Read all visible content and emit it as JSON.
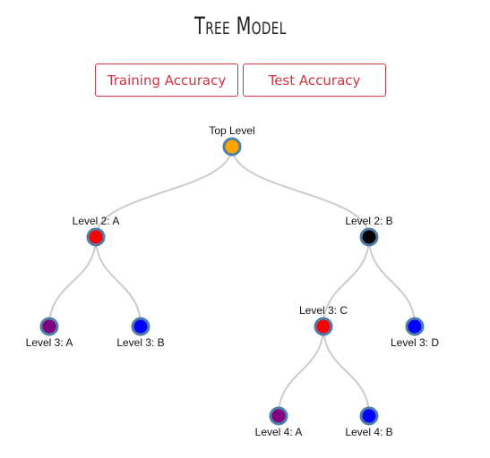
{
  "header": {
    "title": "Tree Model"
  },
  "buttons": {
    "training_label": "Training Accuracy",
    "test_label": "Test Accuracy"
  },
  "colors": {
    "link": "#cccccc",
    "node_stroke": "#4f7fa8",
    "accent": "#d0343f"
  },
  "tree": {
    "nodes": [
      {
        "id": "top",
        "label": "Top Level",
        "fill": "#ffa500",
        "parent": null,
        "label_pos": "above"
      },
      {
        "id": "l2a",
        "label": "Level 2: A",
        "fill": "#ff0000",
        "parent": "top",
        "label_pos": "above"
      },
      {
        "id": "l2b",
        "label": "Level 2: B",
        "fill": "#000000",
        "parent": "top",
        "label_pos": "above"
      },
      {
        "id": "l3a",
        "label": "Level 3: A",
        "fill": "#800080",
        "parent": "l2a",
        "label_pos": "below"
      },
      {
        "id": "l3b",
        "label": "Level 3: B",
        "fill": "#0000ff",
        "parent": "l2a",
        "label_pos": "below"
      },
      {
        "id": "l3c",
        "label": "Level 3: C",
        "fill": "#ff0000",
        "parent": "l2b",
        "label_pos": "above"
      },
      {
        "id": "l3d",
        "label": "Level 3: D",
        "fill": "#0000ff",
        "parent": "l2b",
        "label_pos": "below"
      },
      {
        "id": "l4a",
        "label": "Level 4: A",
        "fill": "#800080",
        "parent": "l3c",
        "label_pos": "below"
      },
      {
        "id": "l4b",
        "label": "Level 4: B",
        "fill": "#0000ff",
        "parent": "l3c",
        "label_pos": "below"
      }
    ]
  }
}
